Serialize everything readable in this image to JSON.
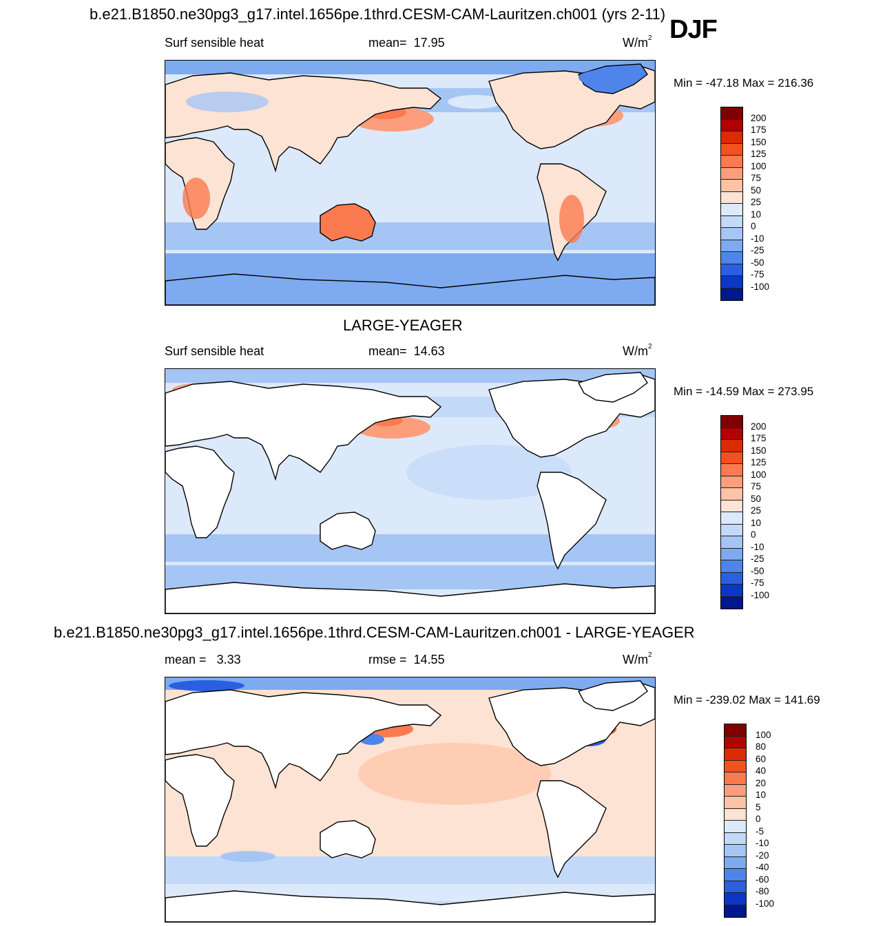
{
  "chart_data": [
    {
      "type": "heatmap",
      "panel": "top",
      "title": "b.e21.B1850.ne30pg3_g17.intel.1656pe.1thrd.CESM-CAM-Lauritzen.ch001 (yrs 2-11)",
      "season": "DJF",
      "variable": "Surf sensible heat",
      "stat_label": "mean=",
      "stat_value": "17.95",
      "units": "W/m",
      "units_sup": "2",
      "min_label": "Min =",
      "min_value": "-47.18",
      "max_label": "Max =",
      "max_value": "216.36",
      "levels": [
        "200",
        "175",
        "150",
        "125",
        "100",
        "75",
        "50",
        "25",
        "10",
        "0",
        "-10",
        "-25",
        "-50",
        "-75",
        "-100"
      ],
      "colors": [
        "#7f0000",
        "#b30000",
        "#dd2a00",
        "#f4511e",
        "#fb7a50",
        "#fc9e7c",
        "#fdc3a6",
        "#fde3d3",
        "#dce9fb",
        "#c3d9f8",
        "#a5c5f5",
        "#7eaaf0",
        "#4f85ea",
        "#2a5fe0",
        "#0b37c6",
        "#00188a"
      ]
    },
    {
      "type": "heatmap",
      "panel": "middle",
      "title": "LARGE-YEAGER",
      "variable": "Surf sensible heat",
      "stat_label": "mean=",
      "stat_value": "14.63",
      "units": "W/m",
      "units_sup": "2",
      "min_label": "Min =",
      "min_value": "-14.59",
      "max_label": "Max =",
      "max_value": "273.95",
      "levels": [
        "200",
        "175",
        "150",
        "125",
        "100",
        "75",
        "50",
        "25",
        "10",
        "0",
        "-10",
        "-25",
        "-50",
        "-75",
        "-100"
      ],
      "colors": [
        "#7f0000",
        "#b30000",
        "#dd2a00",
        "#f4511e",
        "#fb7a50",
        "#fc9e7c",
        "#fdc3a6",
        "#fde3d3",
        "#dce9fb",
        "#c3d9f8",
        "#a5c5f5",
        "#7eaaf0",
        "#4f85ea",
        "#2a5fe0",
        "#0b37c6",
        "#00188a"
      ]
    },
    {
      "type": "heatmap",
      "panel": "bottom",
      "title": "b.e21.B1850.ne30pg3_g17.intel.1656pe.1thrd.CESM-CAM-Lauritzen.ch001 - LARGE-YEAGER",
      "stat_label": "mean =",
      "stat_value": "3.33",
      "stat2_label": "rmse =",
      "stat2_value": "14.55",
      "units": "W/m",
      "units_sup": "2",
      "min_label": "Min =",
      "min_value": "-239.02",
      "max_label": "Max =",
      "max_value": "141.69",
      "levels": [
        "100",
        "80",
        "60",
        "40",
        "20",
        "10",
        "5",
        "0",
        "-5",
        "-10",
        "-20",
        "-40",
        "-60",
        "-80",
        "-100"
      ],
      "colors": [
        "#7f0000",
        "#b30000",
        "#dd2a00",
        "#f4511e",
        "#fb7a50",
        "#fc9e7c",
        "#fdc3a6",
        "#fde3d3",
        "#dce9fb",
        "#c3d9f8",
        "#a5c5f5",
        "#7eaaf0",
        "#4f85ea",
        "#2a5fe0",
        "#0b37c6",
        "#00188a"
      ]
    }
  ]
}
